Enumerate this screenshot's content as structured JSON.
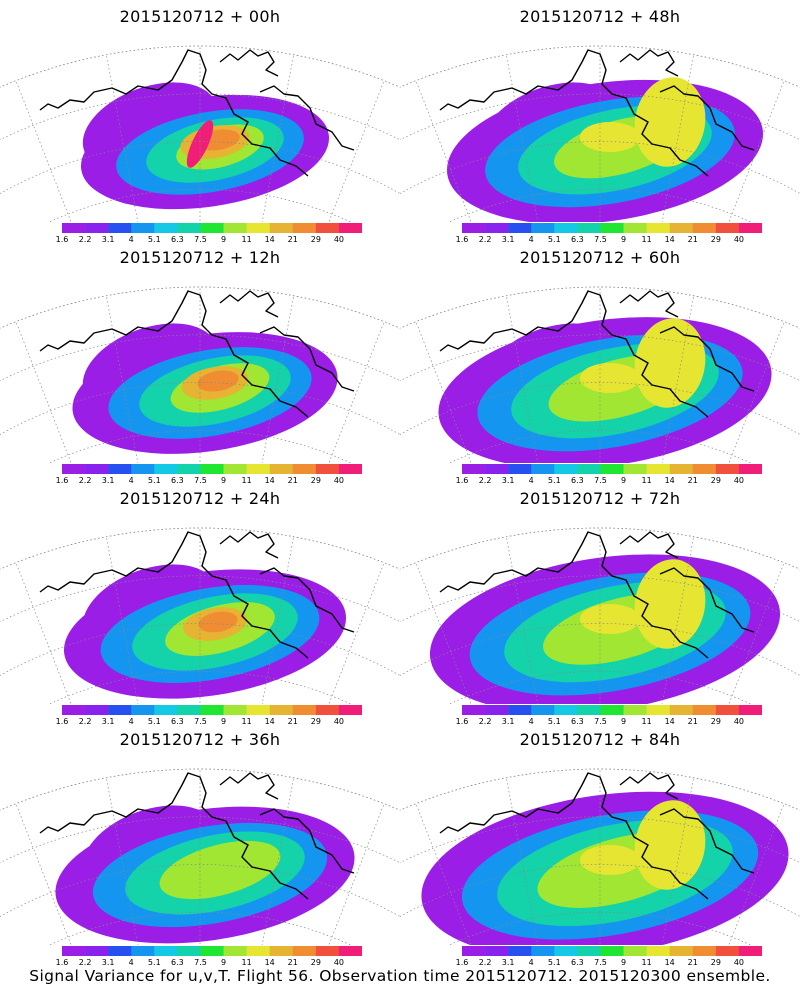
{
  "panels": [
    {
      "title": "2015120712 + 00h",
      "lead": 0
    },
    {
      "title": "2015120712 + 48h",
      "lead": 48
    },
    {
      "title": "2015120712 + 12h",
      "lead": 12
    },
    {
      "title": "2015120712 + 60h",
      "lead": 60
    },
    {
      "title": "2015120712 + 24h",
      "lead": 24
    },
    {
      "title": "2015120712 + 72h",
      "lead": 72
    },
    {
      "title": "2015120712 + 36h",
      "lead": 36
    },
    {
      "title": "2015120712 + 84h",
      "lead": 84
    }
  ],
  "colorbar": {
    "labels": [
      "1.6",
      "2.2",
      "3.1",
      "4",
      "5.1",
      "6.3",
      "7.5",
      "9",
      "11",
      "14",
      "21",
      "29",
      "40"
    ],
    "colors": [
      "#9b1ee6",
      "#8a22ee",
      "#2850f0",
      "#1496f0",
      "#14c8e6",
      "#14d2aa",
      "#1ee632",
      "#a0e632",
      "#e6e632",
      "#e6b432",
      "#f08c32",
      "#f0503c",
      "#f01e78"
    ]
  },
  "caption": "Signal Variance for u,v,T. Flight 56. Observation time 2015120712. 2015120300 ensemble."
}
